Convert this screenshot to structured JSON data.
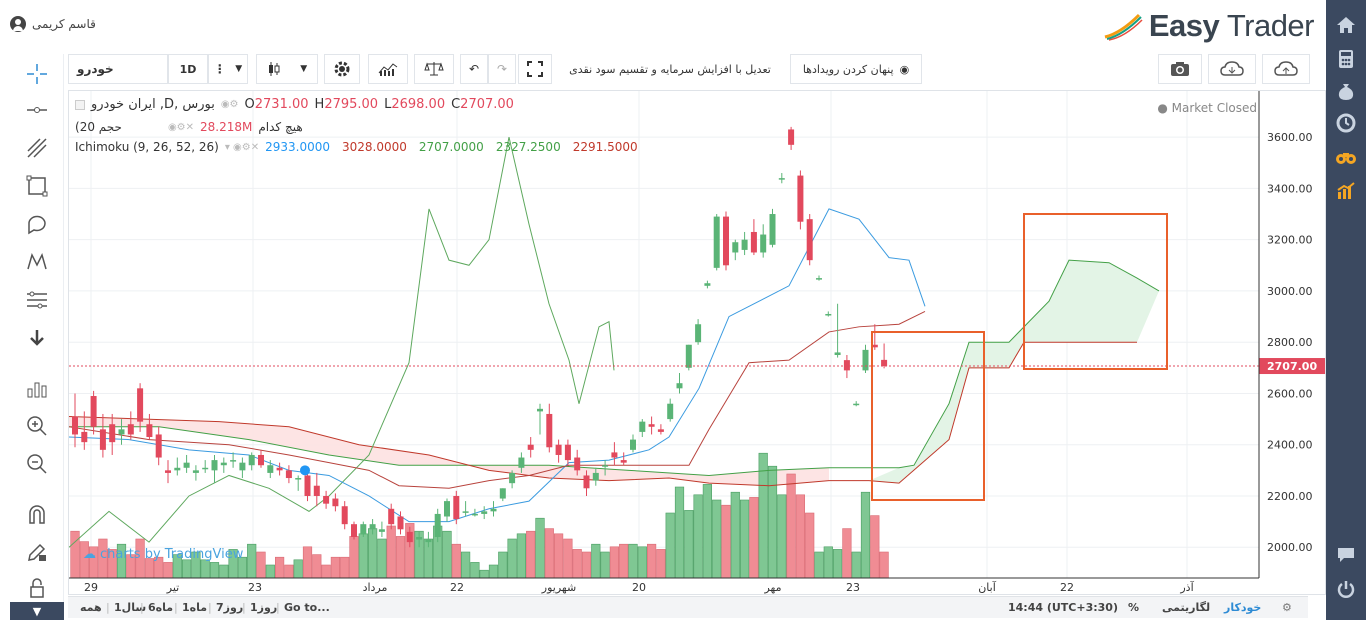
{
  "user": {
    "name": "قاسم کریمی"
  },
  "brand": {
    "name_a": "Easy",
    "name_b": "Trader"
  },
  "toolbar": {
    "symbol": "خودرو",
    "interval": "1D",
    "dividend_label": "تعدیل با افزایش سرمایه و تقسیم سود نقدی",
    "hide_events_label": "پنهان کردن رویدادها"
  },
  "legend": {
    "title": "ایران خودرو ,D, بورس",
    "open_label": "O",
    "open": "2731.00",
    "high_label": "H",
    "high": "2795.00",
    "low_label": "L",
    "low": "2698.00",
    "close_label": "C",
    "close": "2707.00",
    "volume_title": "(حجم 20",
    "volume_mode": "هیچ کدام",
    "volume_value": "28.218M",
    "ichimoku_title": "Ichimoku (9, 26, 52, 26)",
    "ichimoku_values": [
      "2933.0000",
      "3028.0000",
      "2707.0000",
      "2327.2500",
      "2291.5000"
    ],
    "ichimoku_colors": [
      "#2196f3",
      "#c0392b",
      "#43a047",
      "#43a047",
      "#c0392b"
    ],
    "market_status": "Market Closed"
  },
  "watermark": "charts by TradingView",
  "bottom": {
    "ranges": [
      "همه",
      "1سال",
      "6ماه",
      "1ماه",
      "7روز",
      "1روز",
      "Go to..."
    ],
    "time": "14:44 (UTC+3:30)",
    "percent": "%",
    "log": "لگاریتمی",
    "auto": "خودکار"
  },
  "colors": {
    "up": "#5ab476",
    "down": "#e2495d",
    "vol_up": "#7fc793",
    "vol_down": "#f08c94",
    "accent": "#e9602b",
    "sidebar": "#3b4960"
  },
  "chart_data": {
    "type": "candlestick",
    "y_ticks": [
      "3600.00",
      "3400.00",
      "3200.00",
      "3000.00",
      "2800.00",
      "2600.00",
      "2400.00",
      "2200.00",
      "2000.00"
    ],
    "ylim": [
      1880,
      3780
    ],
    "current_price": "2707.00",
    "x_labels": [
      "29",
      "تیر",
      "23",
      "مرداد",
      "22",
      "شهریور",
      "20",
      "مهر",
      "23",
      "آبان",
      "22",
      "آذر"
    ],
    "candles": [
      {
        "o": 2510,
        "h": 2600,
        "l": 2390,
        "c": 2440
      },
      {
        "o": 2450,
        "h": 2530,
        "l": 2380,
        "c": 2410
      },
      {
        "o": 2590,
        "h": 2610,
        "l": 2440,
        "c": 2470
      },
      {
        "o": 2460,
        "h": 2520,
        "l": 2350,
        "c": 2380
      },
      {
        "o": 2480,
        "h": 2520,
        "l": 2360,
        "c": 2410
      },
      {
        "o": 2440,
        "h": 2500,
        "l": 2400,
        "c": 2460
      },
      {
        "o": 2480,
        "h": 2530,
        "l": 2420,
        "c": 2440
      },
      {
        "o": 2620,
        "h": 2640,
        "l": 2450,
        "c": 2490
      },
      {
        "o": 2480,
        "h": 2520,
        "l": 2420,
        "c": 2430
      },
      {
        "o": 2440,
        "h": 2470,
        "l": 2320,
        "c": 2350
      },
      {
        "o": 2300,
        "h": 2340,
        "l": 2250,
        "c": 2290
      },
      {
        "o": 2300,
        "h": 2350,
        "l": 2280,
        "c": 2310
      },
      {
        "o": 2310,
        "h": 2360,
        "l": 2290,
        "c": 2330
      },
      {
        "o": 2290,
        "h": 2320,
        "l": 2260,
        "c": 2300
      },
      {
        "o": 2310,
        "h": 2340,
        "l": 2290,
        "c": 2310
      },
      {
        "o": 2300,
        "h": 2360,
        "l": 2250,
        "c": 2340
      },
      {
        "o": 2320,
        "h": 2350,
        "l": 2290,
        "c": 2330
      },
      {
        "o": 2340,
        "h": 2370,
        "l": 2310,
        "c": 2340
      },
      {
        "o": 2300,
        "h": 2350,
        "l": 2270,
        "c": 2330
      },
      {
        "o": 2320,
        "h": 2370,
        "l": 2300,
        "c": 2360
      },
      {
        "o": 2360,
        "h": 2380,
        "l": 2310,
        "c": 2320
      },
      {
        "o": 2290,
        "h": 2340,
        "l": 2270,
        "c": 2320
      },
      {
        "o": 2310,
        "h": 2330,
        "l": 2280,
        "c": 2300
      },
      {
        "o": 2300,
        "h": 2320,
        "l": 2250,
        "c": 2270
      },
      {
        "o": 2270,
        "h": 2280,
        "l": 2220,
        "c": 2270
      },
      {
        "o": 2280,
        "h": 2290,
        "l": 2180,
        "c": 2200
      },
      {
        "o": 2240,
        "h": 2290,
        "l": 2160,
        "c": 2200
      },
      {
        "o": 2200,
        "h": 2220,
        "l": 2150,
        "c": 2170
      },
      {
        "o": 2190,
        "h": 2210,
        "l": 2140,
        "c": 2160
      },
      {
        "o": 2160,
        "h": 2180,
        "l": 2070,
        "c": 2090
      },
      {
        "o": 2090,
        "h": 2100,
        "l": 2030,
        "c": 2040
      },
      {
        "o": 2050,
        "h": 2100,
        "l": 2040,
        "c": 2090
      },
      {
        "o": 2070,
        "h": 2110,
        "l": 2050,
        "c": 2090
      },
      {
        "o": 2060,
        "h": 2100,
        "l": 2040,
        "c": 2070
      },
      {
        "o": 2150,
        "h": 2170,
        "l": 2070,
        "c": 2090
      },
      {
        "o": 2120,
        "h": 2140,
        "l": 2050,
        "c": 2070
      },
      {
        "o": 2060,
        "h": 2080,
        "l": 2000,
        "c": 2020
      },
      {
        "o": 2030,
        "h": 2060,
        "l": 2000,
        "c": 2040
      },
      {
        "o": 2020,
        "h": 2060,
        "l": 2000,
        "c": 2030
      },
      {
        "o": 2040,
        "h": 2150,
        "l": 2020,
        "c": 2130
      },
      {
        "o": 2120,
        "h": 2190,
        "l": 2100,
        "c": 2180
      },
      {
        "o": 2200,
        "h": 2220,
        "l": 2090,
        "c": 2110
      },
      {
        "o": 2140,
        "h": 2180,
        "l": 2120,
        "c": 2140
      },
      {
        "o": 2130,
        "h": 2150,
        "l": 2120,
        "c": 2130
      },
      {
        "o": 2130,
        "h": 2160,
        "l": 2110,
        "c": 2140
      },
      {
        "o": 2140,
        "h": 2180,
        "l": 2120,
        "c": 2150
      },
      {
        "o": 2190,
        "h": 2230,
        "l": 2180,
        "c": 2230
      },
      {
        "o": 2250,
        "h": 2300,
        "l": 2230,
        "c": 2290
      },
      {
        "o": 2310,
        "h": 2370,
        "l": 2290,
        "c": 2350
      },
      {
        "o": 2400,
        "h": 2430,
        "l": 2350,
        "c": 2380
      },
      {
        "o": 2530,
        "h": 2560,
        "l": 2440,
        "c": 2540
      },
      {
        "o": 2520,
        "h": 2560,
        "l": 2370,
        "c": 2390
      },
      {
        "o": 2400,
        "h": 2420,
        "l": 2330,
        "c": 2360
      },
      {
        "o": 2400,
        "h": 2420,
        "l": 2320,
        "c": 2340
      },
      {
        "o": 2350,
        "h": 2380,
        "l": 2280,
        "c": 2300
      },
      {
        "o": 2280,
        "h": 2300,
        "l": 2200,
        "c": 2230
      },
      {
        "o": 2260,
        "h": 2310,
        "l": 2240,
        "c": 2290
      },
      {
        "o": 2320,
        "h": 2340,
        "l": 2280,
        "c": 2320
      },
      {
        "o": 2370,
        "h": 2410,
        "l": 2320,
        "c": 2350
      },
      {
        "o": 2340,
        "h": 2370,
        "l": 2320,
        "c": 2330
      },
      {
        "o": 2380,
        "h": 2440,
        "l": 2370,
        "c": 2420
      },
      {
        "o": 2450,
        "h": 2500,
        "l": 2430,
        "c": 2490
      },
      {
        "o": 2480,
        "h": 2510,
        "l": 2440,
        "c": 2470
      },
      {
        "o": 2460,
        "h": 2480,
        "l": 2440,
        "c": 2450
      },
      {
        "o": 2500,
        "h": 2580,
        "l": 2490,
        "c": 2560
      },
      {
        "o": 2620,
        "h": 2680,
        "l": 2600,
        "c": 2640
      },
      {
        "o": 2700,
        "h": 2790,
        "l": 2690,
        "c": 2790
      },
      {
        "o": 2800,
        "h": 2890,
        "l": 2790,
        "c": 2870
      },
      {
        "o": 3020,
        "h": 3040,
        "l": 3010,
        "c": 3030
      },
      {
        "o": 3090,
        "h": 3300,
        "l": 3080,
        "c": 3290
      },
      {
        "o": 3290,
        "h": 3310,
        "l": 3080,
        "c": 3100
      },
      {
        "o": 3150,
        "h": 3200,
        "l": 3120,
        "c": 3190
      },
      {
        "o": 3160,
        "h": 3230,
        "l": 3140,
        "c": 3200
      },
      {
        "o": 3230,
        "h": 3280,
        "l": 3140,
        "c": 3150
      },
      {
        "o": 3150,
        "h": 3260,
        "l": 3130,
        "c": 3220
      },
      {
        "o": 3180,
        "h": 3320,
        "l": 3170,
        "c": 3300
      },
      {
        "o": 3440,
        "h": 3460,
        "l": 3420,
        "c": 3440
      },
      {
        "o": 3630,
        "h": 3640,
        "l": 3550,
        "c": 3570
      },
      {
        "o": 3450,
        "h": 3470,
        "l": 3240,
        "c": 3270
      },
      {
        "o": 3280,
        "h": 3300,
        "l": 3100,
        "c": 3120
      },
      {
        "o": 3050,
        "h": 3060,
        "l": 3040,
        "c": 3050
      },
      {
        "o": 2910,
        "h": 2920,
        "l": 2900,
        "c": 2910
      },
      {
        "o": 2750,
        "h": 2950,
        "l": 2740,
        "c": 2760
      },
      {
        "o": 2730,
        "h": 2750,
        "l": 2660,
        "c": 2690
      },
      {
        "o": 2560,
        "h": 2570,
        "l": 2550,
        "c": 2560
      },
      {
        "o": 2690,
        "h": 2790,
        "l": 2680,
        "c": 2770
      },
      {
        "o": 2790,
        "h": 2870,
        "l": 2770,
        "c": 2780
      },
      {
        "o": 2731,
        "h": 2795,
        "l": 2698,
        "c": 2707
      }
    ],
    "volume_heights": [
      0.36,
      0.28,
      0.24,
      0.3,
      0.22,
      0.26,
      0.18,
      0.3,
      0.15,
      0.16,
      0.12,
      0.18,
      0.14,
      0.2,
      0.14,
      0.12,
      0.1,
      0.22,
      0.16,
      0.26,
      0.2,
      0.1,
      0.16,
      0.1,
      0.14,
      0.24,
      0.18,
      0.1,
      0.16,
      0.16,
      0.32,
      0.34,
      0.38,
      0.3,
      0.4,
      0.32,
      0.42,
      0.36,
      0.3,
      0.4,
      0.36,
      0.26,
      0.2,
      0.12,
      0.06,
      0.1,
      0.2,
      0.3,
      0.34,
      0.36,
      0.46,
      0.38,
      0.34,
      0.3,
      0.22,
      0.2,
      0.26,
      0.2,
      0.24,
      0.26,
      0.26,
      0.24,
      0.26,
      0.22,
      0.5,
      0.7,
      0.52,
      0.64,
      0.72,
      0.6,
      0.56,
      0.66,
      0.6,
      0.62,
      0.96,
      0.86,
      0.64,
      0.8,
      0.64,
      0.5,
      0.2,
      0.24,
      0.22,
      0.38,
      0.2,
      0.66,
      0.48,
      0.2
    ]
  }
}
